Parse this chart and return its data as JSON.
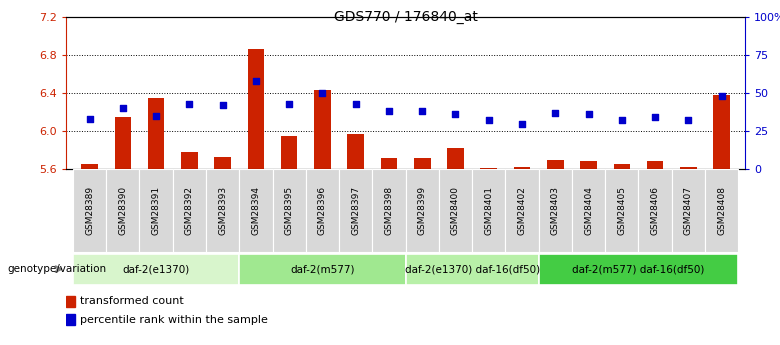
{
  "title": "GDS770 / 176840_at",
  "samples": [
    "GSM28389",
    "GSM28390",
    "GSM28391",
    "GSM28392",
    "GSM28393",
    "GSM28394",
    "GSM28395",
    "GSM28396",
    "GSM28397",
    "GSM28398",
    "GSM28399",
    "GSM28400",
    "GSM28401",
    "GSM28402",
    "GSM28403",
    "GSM28404",
    "GSM28405",
    "GSM28406",
    "GSM28407",
    "GSM28408"
  ],
  "transformed_count": [
    5.65,
    6.15,
    6.35,
    5.78,
    5.73,
    6.87,
    5.95,
    6.43,
    5.97,
    5.72,
    5.72,
    5.82,
    5.61,
    5.62,
    5.7,
    5.68,
    5.65,
    5.68,
    5.62,
    6.38
  ],
  "percentile_rank": [
    33,
    40,
    35,
    43,
    42,
    58,
    43,
    50,
    43,
    38,
    38,
    36,
    32,
    30,
    37,
    36,
    32,
    34,
    32,
    48
  ],
  "ylim_left": [
    5.6,
    7.2
  ],
  "ylim_right": [
    0,
    100
  ],
  "yticks_left": [
    5.6,
    6.0,
    6.4,
    6.8,
    7.2
  ],
  "yticks_right": [
    0,
    25,
    50,
    75,
    100
  ],
  "ytick_labels_right": [
    "0",
    "25",
    "50",
    "75",
    "100%"
  ],
  "groups": [
    {
      "label": "daf-2(e1370)",
      "start": 0,
      "end": 4,
      "color": "#d8f5cc"
    },
    {
      "label": "daf-2(m577)",
      "start": 5,
      "end": 9,
      "color": "#a0e890"
    },
    {
      "label": "daf-2(e1370) daf-16(df50)",
      "start": 10,
      "end": 13,
      "color": "#b8f0a8"
    },
    {
      "label": "daf-2(m577) daf-16(df50)",
      "start": 14,
      "end": 19,
      "color": "#44cc44"
    }
  ],
  "bar_color": "#cc2200",
  "dot_color": "#0000cc",
  "bar_width": 0.5,
  "legend_items": [
    "transformed count",
    "percentile rank within the sample"
  ],
  "genotype_label": "genotype/variation"
}
